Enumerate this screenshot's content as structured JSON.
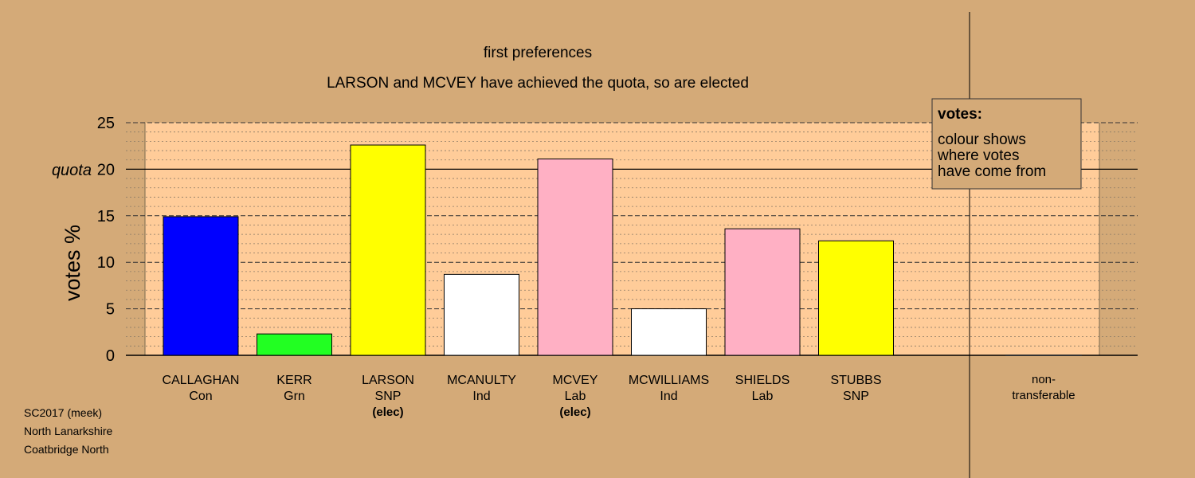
{
  "chart_data": {
    "type": "bar",
    "title": "first preferences",
    "subtitle": "LARSON and MCVEY have achieved the quota, so are elected",
    "ylabel": "votes %",
    "quota_label": "quota",
    "quota": 20,
    "ylim": [
      0,
      25
    ],
    "yticks": [
      0,
      5,
      10,
      15,
      20,
      25
    ],
    "y_tick_labels": [
      "0",
      "5",
      "10",
      "15",
      "",
      "25"
    ],
    "quota_tick_label": "20",
    "grid": true,
    "bars": [
      {
        "name": "CALLAGHAN",
        "party": "Con",
        "value": 14.9,
        "color": "#0000ff",
        "note": ""
      },
      {
        "name": "KERR",
        "party": "Grn",
        "value": 2.3,
        "color": "#22ff22",
        "note": ""
      },
      {
        "name": "LARSON",
        "party": "SNP",
        "value": 22.6,
        "color": "#ffff00",
        "note": "(elec)"
      },
      {
        "name": "MCANULTY",
        "party": "Ind",
        "value": 8.7,
        "color": "#ffffff",
        "note": ""
      },
      {
        "name": "MCVEY",
        "party": "Lab",
        "value": 21.1,
        "color": "#ffb0c4",
        "note": "(elec)"
      },
      {
        "name": "MCWILLIAMS",
        "party": "Ind",
        "value": 5.0,
        "color": "#ffffff",
        "note": ""
      },
      {
        "name": "SHIELDS",
        "party": "Lab",
        "value": 13.6,
        "color": "#ffb0c4",
        "note": ""
      },
      {
        "name": "STUBBS",
        "party": "SNP",
        "value": 12.3,
        "color": "#ffff00",
        "note": ""
      }
    ],
    "non_transferable": {
      "label_line1": "non-",
      "label_line2": "transferable",
      "value": 0
    },
    "legend": {
      "title": "votes:",
      "lines": [
        "colour shows",
        "where votes",
        "have come from"
      ],
      "placement": "top-right"
    },
    "colors": {
      "background": "#d4aa78",
      "plot_area": "#ffcc99"
    }
  },
  "footer": {
    "line1": "SC2017 (meek)",
    "line2": "North Lanarkshire",
    "line3": "Coatbridge North"
  }
}
